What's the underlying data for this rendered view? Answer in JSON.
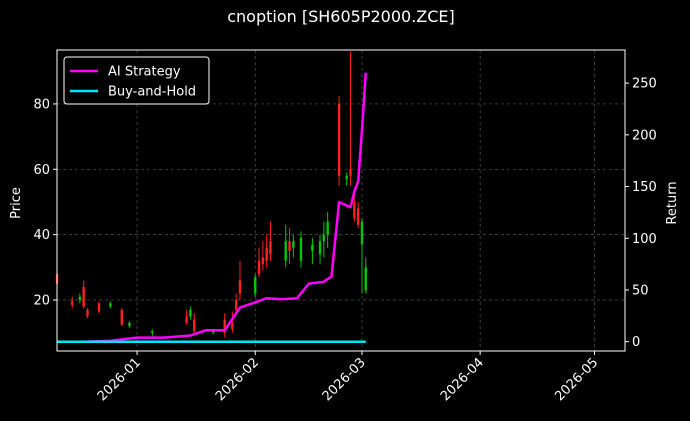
{
  "chart_data": {
    "type": "candlestick_with_lines",
    "title": "cnoption [SH605P2000.ZCE]",
    "ylabel_left": "Price",
    "ylabel_right": "Return",
    "xlabel": "",
    "x_date_range": [
      "2025-12-11",
      "2026-05-09"
    ],
    "ylim_left": [
      4.4,
      96.5
    ],
    "ylim_right": [
      -9,
      282
    ],
    "x_ticks": [
      "2026-01",
      "2026-02",
      "2026-03",
      "2026-04",
      "2026-05"
    ],
    "x_tick_dates": [
      "2026-01-01",
      "2026-02-01",
      "2026-03-01",
      "2026-04-01",
      "2026-05-01"
    ],
    "y_ticks_left": [
      20,
      40,
      60,
      80
    ],
    "y_ticks_right": [
      0,
      50,
      100,
      150,
      200,
      250
    ],
    "grid": true,
    "legend_position": "upper-left",
    "colors": {
      "up": "#00c800",
      "down": "#ff2020",
      "ai_strategy": "#ff00ff",
      "buy_and_hold": "#00e5ff",
      "grid": "#555555",
      "axes": "#ffffff",
      "background": "#000000"
    },
    "candles": [
      {
        "date": "2025-12-11",
        "open": 28.0,
        "high": 29.0,
        "low": 24.5,
        "close": 25.0
      },
      {
        "date": "2025-12-15",
        "open": 19.5,
        "high": 21.0,
        "low": 17.5,
        "close": 18.5
      },
      {
        "date": "2025-12-17",
        "open": 20.0,
        "high": 22.0,
        "low": 19.0,
        "close": 21.0
      },
      {
        "date": "2025-12-18",
        "open": 24.0,
        "high": 26.0,
        "low": 17.5,
        "close": 18.0
      },
      {
        "date": "2025-12-19",
        "open": 17.0,
        "high": 17.5,
        "low": 14.5,
        "close": 15.0
      },
      {
        "date": "2025-12-22",
        "open": 19.0,
        "high": 19.5,
        "low": 16.0,
        "close": 16.5
      },
      {
        "date": "2025-12-25",
        "open": 18.0,
        "high": 19.5,
        "low": 17.5,
        "close": 19.0
      },
      {
        "date": "2025-12-28",
        "open": 17.0,
        "high": 17.5,
        "low": 12.0,
        "close": 12.5
      },
      {
        "date": "2025-12-30",
        "open": 12.0,
        "high": 13.5,
        "low": 11.5,
        "close": 13.0
      },
      {
        "date": "2026-01-05",
        "open": 10.0,
        "high": 11.0,
        "low": 8.0,
        "close": 10.5
      },
      {
        "date": "2026-01-14",
        "open": 15.0,
        "high": 17.0,
        "low": 12.5,
        "close": 13.0
      },
      {
        "date": "2026-01-15",
        "open": 15.0,
        "high": 18.0,
        "low": 14.0,
        "close": 17.0
      },
      {
        "date": "2026-01-16",
        "open": 14.0,
        "high": 16.0,
        "low": 10.0,
        "close": 10.5
      },
      {
        "date": "2026-01-21",
        "open": 10.0,
        "high": 11.0,
        "low": 9.5,
        "close": 10.5
      },
      {
        "date": "2026-01-24",
        "open": 14.0,
        "high": 16.0,
        "low": 8.5,
        "close": 10.0
      },
      {
        "date": "2026-01-26",
        "open": 13.0,
        "high": 16.5,
        "low": 10.0,
        "close": 11.0
      },
      {
        "date": "2026-01-27",
        "open": 20.0,
        "high": 22.0,
        "low": 16.0,
        "close": 17.0
      },
      {
        "date": "2026-01-28",
        "open": 26.0,
        "high": 32.0,
        "low": 20.0,
        "close": 22.0
      },
      {
        "date": "2026-02-01",
        "open": 22.0,
        "high": 28.0,
        "low": 21.0,
        "close": 27.0
      },
      {
        "date": "2026-02-02",
        "open": 32.0,
        "high": 36.0,
        "low": 27.0,
        "close": 28.0
      },
      {
        "date": "2026-02-03",
        "open": 33.0,
        "high": 38.0,
        "low": 29.0,
        "close": 31.0
      },
      {
        "date": "2026-02-04",
        "open": 36.0,
        "high": 40.0,
        "low": 30.0,
        "close": 32.0
      },
      {
        "date": "2026-02-05",
        "open": 38.0,
        "high": 44.0,
        "low": 32.0,
        "close": 34.0
      },
      {
        "date": "2026-02-09",
        "open": 32.0,
        "high": 43.0,
        "low": 30.0,
        "close": 38.0
      },
      {
        "date": "2026-02-10",
        "open": 38.0,
        "high": 42.0,
        "low": 31.0,
        "close": 35.0
      },
      {
        "date": "2026-02-11",
        "open": 36.0,
        "high": 40.0,
        "low": 33.0,
        "close": 38.0
      },
      {
        "date": "2026-02-13",
        "open": 32.0,
        "high": 41.0,
        "low": 30.0,
        "close": 39.0
      },
      {
        "date": "2026-02-16",
        "open": 35.0,
        "high": 39.0,
        "low": 31.0,
        "close": 37.0
      },
      {
        "date": "2026-02-18",
        "open": 34.0,
        "high": 40.0,
        "low": 31.0,
        "close": 38.0
      },
      {
        "date": "2026-02-19",
        "open": 38.0,
        "high": 44.0,
        "low": 33.0,
        "close": 40.0
      },
      {
        "date": "2026-02-20",
        "open": 40.0,
        "high": 47.0,
        "low": 36.0,
        "close": 44.0
      },
      {
        "date": "2026-02-23",
        "open": 80.0,
        "high": 82.5,
        "low": 55.0,
        "close": 58.0
      },
      {
        "date": "2026-02-25",
        "open": 57.0,
        "high": 59.0,
        "low": 55.0,
        "close": 58.0
      },
      {
        "date": "2026-02-26",
        "open": 60.0,
        "high": 96.0,
        "low": 55.0,
        "close": 58.0
      },
      {
        "date": "2026-02-27",
        "open": 50.0,
        "high": 53.0,
        "low": 44.0,
        "close": 45.0
      },
      {
        "date": "2026-02-28",
        "open": 48.0,
        "high": 50.0,
        "low": 42.0,
        "close": 43.0
      },
      {
        "date": "2026-03-01",
        "open": 37.0,
        "high": 45.0,
        "low": 22.0,
        "close": 44.0
      },
      {
        "date": "2026-03-02",
        "open": 23.0,
        "high": 33.0,
        "low": 22.0,
        "close": 30.0
      }
    ],
    "series": [
      {
        "name": "AI Strategy",
        "dates": [
          "2025-12-11",
          "2025-12-18",
          "2025-12-25",
          "2026-01-01",
          "2026-01-08",
          "2026-01-15",
          "2026-01-19",
          "2026-01-24",
          "2026-01-28",
          "2026-02-01",
          "2026-02-04",
          "2026-02-08",
          "2026-02-12",
          "2026-02-15",
          "2026-02-19",
          "2026-02-21",
          "2026-02-23",
          "2026-02-26",
          "2026-02-27",
          "2026-02-28",
          "2026-03-01",
          "2026-03-02"
        ],
        "values": [
          0,
          0,
          1,
          4,
          4,
          6,
          11,
          11,
          33,
          38,
          42,
          41,
          42,
          56,
          58,
          63,
          135,
          130,
          145,
          155,
          205,
          260
        ]
      },
      {
        "name": "Buy-and-Hold",
        "dates": [
          "2025-12-11",
          "2026-03-02"
        ],
        "values": [
          0,
          0
        ]
      }
    ]
  }
}
